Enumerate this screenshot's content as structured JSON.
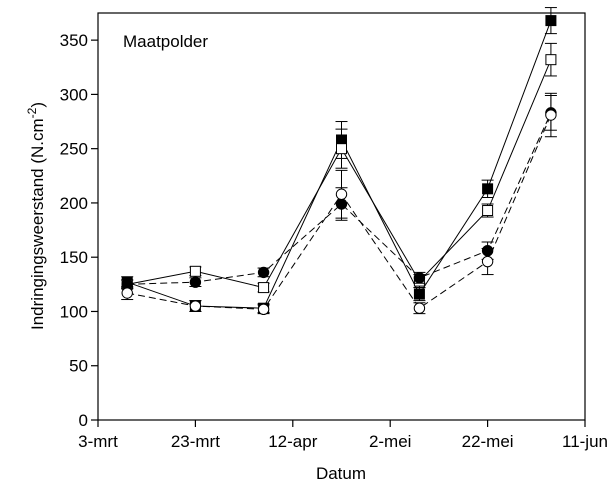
{
  "chart_data": {
    "type": "line",
    "title": "",
    "annotation": "Maatpolder",
    "xlabel": "Datum",
    "ylabel": "Indringingsweerstand (N.cm",
    "ylabel_sup": "-2",
    "ylabel_close": ")",
    "xlim": [
      "2009-03-03",
      "2009-06-11"
    ],
    "ylim": [
      0,
      375
    ],
    "x_ticks": [
      {
        "date": "2009-03-03",
        "label": "3-mrt"
      },
      {
        "date": "2009-03-23",
        "label": "23-mrt"
      },
      {
        "date": "2009-04-12",
        "label": "12-apr"
      },
      {
        "date": "2009-05-02",
        "label": "2-mei"
      },
      {
        "date": "2009-05-22",
        "label": "22-mei"
      },
      {
        "date": "2009-06-11",
        "label": "11-jun"
      }
    ],
    "y_ticks": [
      0,
      50,
      100,
      150,
      200,
      250,
      300,
      350
    ],
    "grid": false,
    "legend": "none",
    "x": [
      "2009-03-09",
      "2009-03-23",
      "2009-04-06",
      "2009-04-22",
      "2009-05-08",
      "2009-05-22",
      "2009-06-04"
    ],
    "series": [
      {
        "marker": "filled-square",
        "line": "solid",
        "values": [
          127,
          105,
          103,
          258,
          116,
          213,
          368
        ],
        "errors": [
          5,
          5,
          4,
          17,
          6,
          8,
          12
        ]
      },
      {
        "marker": "open-square",
        "line": "solid",
        "values": [
          125,
          137,
          122,
          250,
          128,
          193,
          332
        ],
        "errors": [
          4,
          4,
          4,
          18,
          6,
          6,
          15
        ]
      },
      {
        "marker": "filled-circle",
        "line": "dashed",
        "values": [
          125,
          127,
          136,
          199,
          131,
          156,
          283
        ],
        "errors": [
          4,
          4,
          4,
          15,
          5,
          8,
          16
        ]
      },
      {
        "marker": "open-circle",
        "line": "dashed",
        "values": [
          117,
          105,
          102,
          208,
          103,
          146,
          281
        ],
        "errors": [
          6,
          5,
          4,
          22,
          5,
          12,
          20
        ]
      }
    ]
  }
}
